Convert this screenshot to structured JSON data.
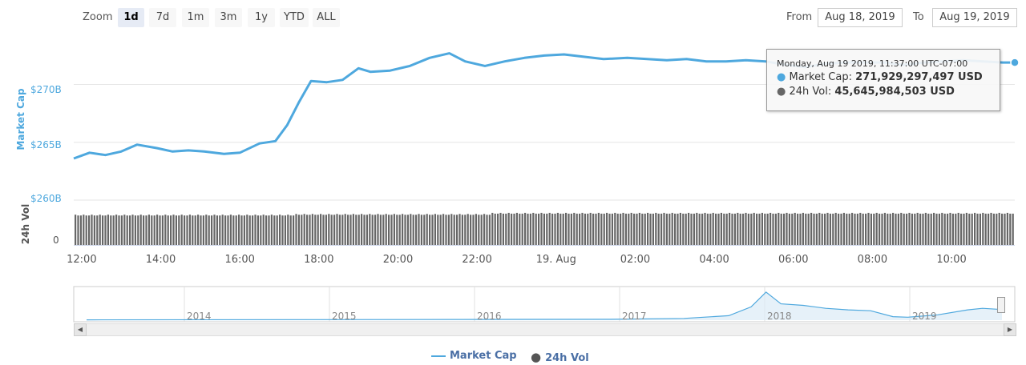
{
  "toolbar": {
    "zoom_label": "Zoom",
    "zoom_buttons": [
      "1d",
      "7d",
      "1m",
      "3m",
      "1y",
      "YTD",
      "ALL"
    ],
    "active_zoom": "1d",
    "from_label": "From",
    "from_value": "Aug 18, 2019",
    "to_label": "To",
    "to_value": "Aug 19, 2019"
  },
  "tooltip": {
    "date": "Monday, Aug 19 2019, 11:37:00 UTC-07:00",
    "market_cap_label": "Market Cap:",
    "market_cap_value": "271,929,297,497 USD",
    "volume_label": "24h Vol:",
    "volume_value": "45,645,984,503 USD"
  },
  "navigator": {
    "years": [
      "2014",
      "2015",
      "2016",
      "2017",
      "2018",
      "2019"
    ]
  },
  "legend": {
    "market_cap": "Market Cap",
    "volume": "24h Vol"
  },
  "colors": {
    "market_cap": "#4ea8de",
    "volume": "#666666",
    "navigator_fill": "#dcebf7"
  },
  "chart_data": {
    "type": "line",
    "title": "",
    "ylabel": "Market Cap",
    "ylabel2": "24h Vol",
    "y_ticks": [
      "$260B",
      "$265B",
      "$270B"
    ],
    "y_tick_values": [
      260,
      265,
      270
    ],
    "ylim": [
      260,
      273.5
    ],
    "y2_ticks": [
      "0"
    ],
    "x_ticks": [
      "12:00",
      "14:00",
      "16:00",
      "18:00",
      "20:00",
      "22:00",
      "19. Aug",
      "02:00",
      "04:00",
      "06:00",
      "08:00",
      "10:00"
    ],
    "x_tick_hours": [
      12,
      14,
      16,
      18,
      20,
      22,
      24,
      26,
      28,
      30,
      32,
      34
    ],
    "xlim_hours": [
      11.8,
      35.6
    ],
    "grid": true,
    "legend_position": "bottom-center",
    "series": [
      {
        "name": "Market Cap",
        "x_hours": [
          11.8,
          12.2,
          12.6,
          13.0,
          13.4,
          13.9,
          14.3,
          14.7,
          15.1,
          15.6,
          16.0,
          16.5,
          16.9,
          17.2,
          17.5,
          17.8,
          18.2,
          18.6,
          19.0,
          19.3,
          19.8,
          20.3,
          20.8,
          21.3,
          21.7,
          22.2,
          22.7,
          23.2,
          23.7,
          24.2,
          24.7,
          25.2,
          25.8,
          26.3,
          26.8,
          27.3,
          27.8,
          28.3,
          28.8,
          29.3,
          29.8,
          30.3,
          30.8,
          31.3,
          31.8,
          32.3,
          32.8,
          33.3,
          33.8,
          34.3,
          34.8,
          35.3,
          35.6
        ],
        "values": [
          263.6,
          264.1,
          263.9,
          264.2,
          264.8,
          264.5,
          264.2,
          264.3,
          264.2,
          264.0,
          264.1,
          264.9,
          265.1,
          266.5,
          268.5,
          270.3,
          270.2,
          270.4,
          271.4,
          271.1,
          271.2,
          271.6,
          272.3,
          272.7,
          272.0,
          271.6,
          272.0,
          272.3,
          272.5,
          272.6,
          272.4,
          272.2,
          272.3,
          272.2,
          272.1,
          272.2,
          272.0,
          272.0,
          272.1,
          272.0,
          271.7,
          271.5,
          271.8,
          271.9,
          271.9,
          271.9,
          271.7,
          271.9,
          272.0,
          272.1,
          272.0,
          271.9,
          271.9
        ]
      },
      {
        "name": "24h Vol",
        "note_levels": "relative bar heights, 0-1",
        "x_hours": [
          11.8,
          17.3,
          17.4,
          22.2,
          22.3,
          35.6
        ],
        "values": [
          0.8,
          0.8,
          0.82,
          0.82,
          0.85,
          0.85
        ]
      }
    ],
    "navigator_series": {
      "x_years": [
        2013.5,
        2017.0,
        2017.5,
        2017.8,
        2017.95,
        2018.05,
        2018.15,
        2018.3,
        2018.45,
        2018.6,
        2018.75,
        2018.9,
        2019.0,
        2019.2,
        2019.4,
        2019.5,
        2019.63
      ],
      "values": [
        0.01,
        0.03,
        0.06,
        0.15,
        0.45,
        0.95,
        0.55,
        0.5,
        0.4,
        0.35,
        0.32,
        0.12,
        0.1,
        0.18,
        0.35,
        0.4,
        0.36
      ]
    }
  }
}
